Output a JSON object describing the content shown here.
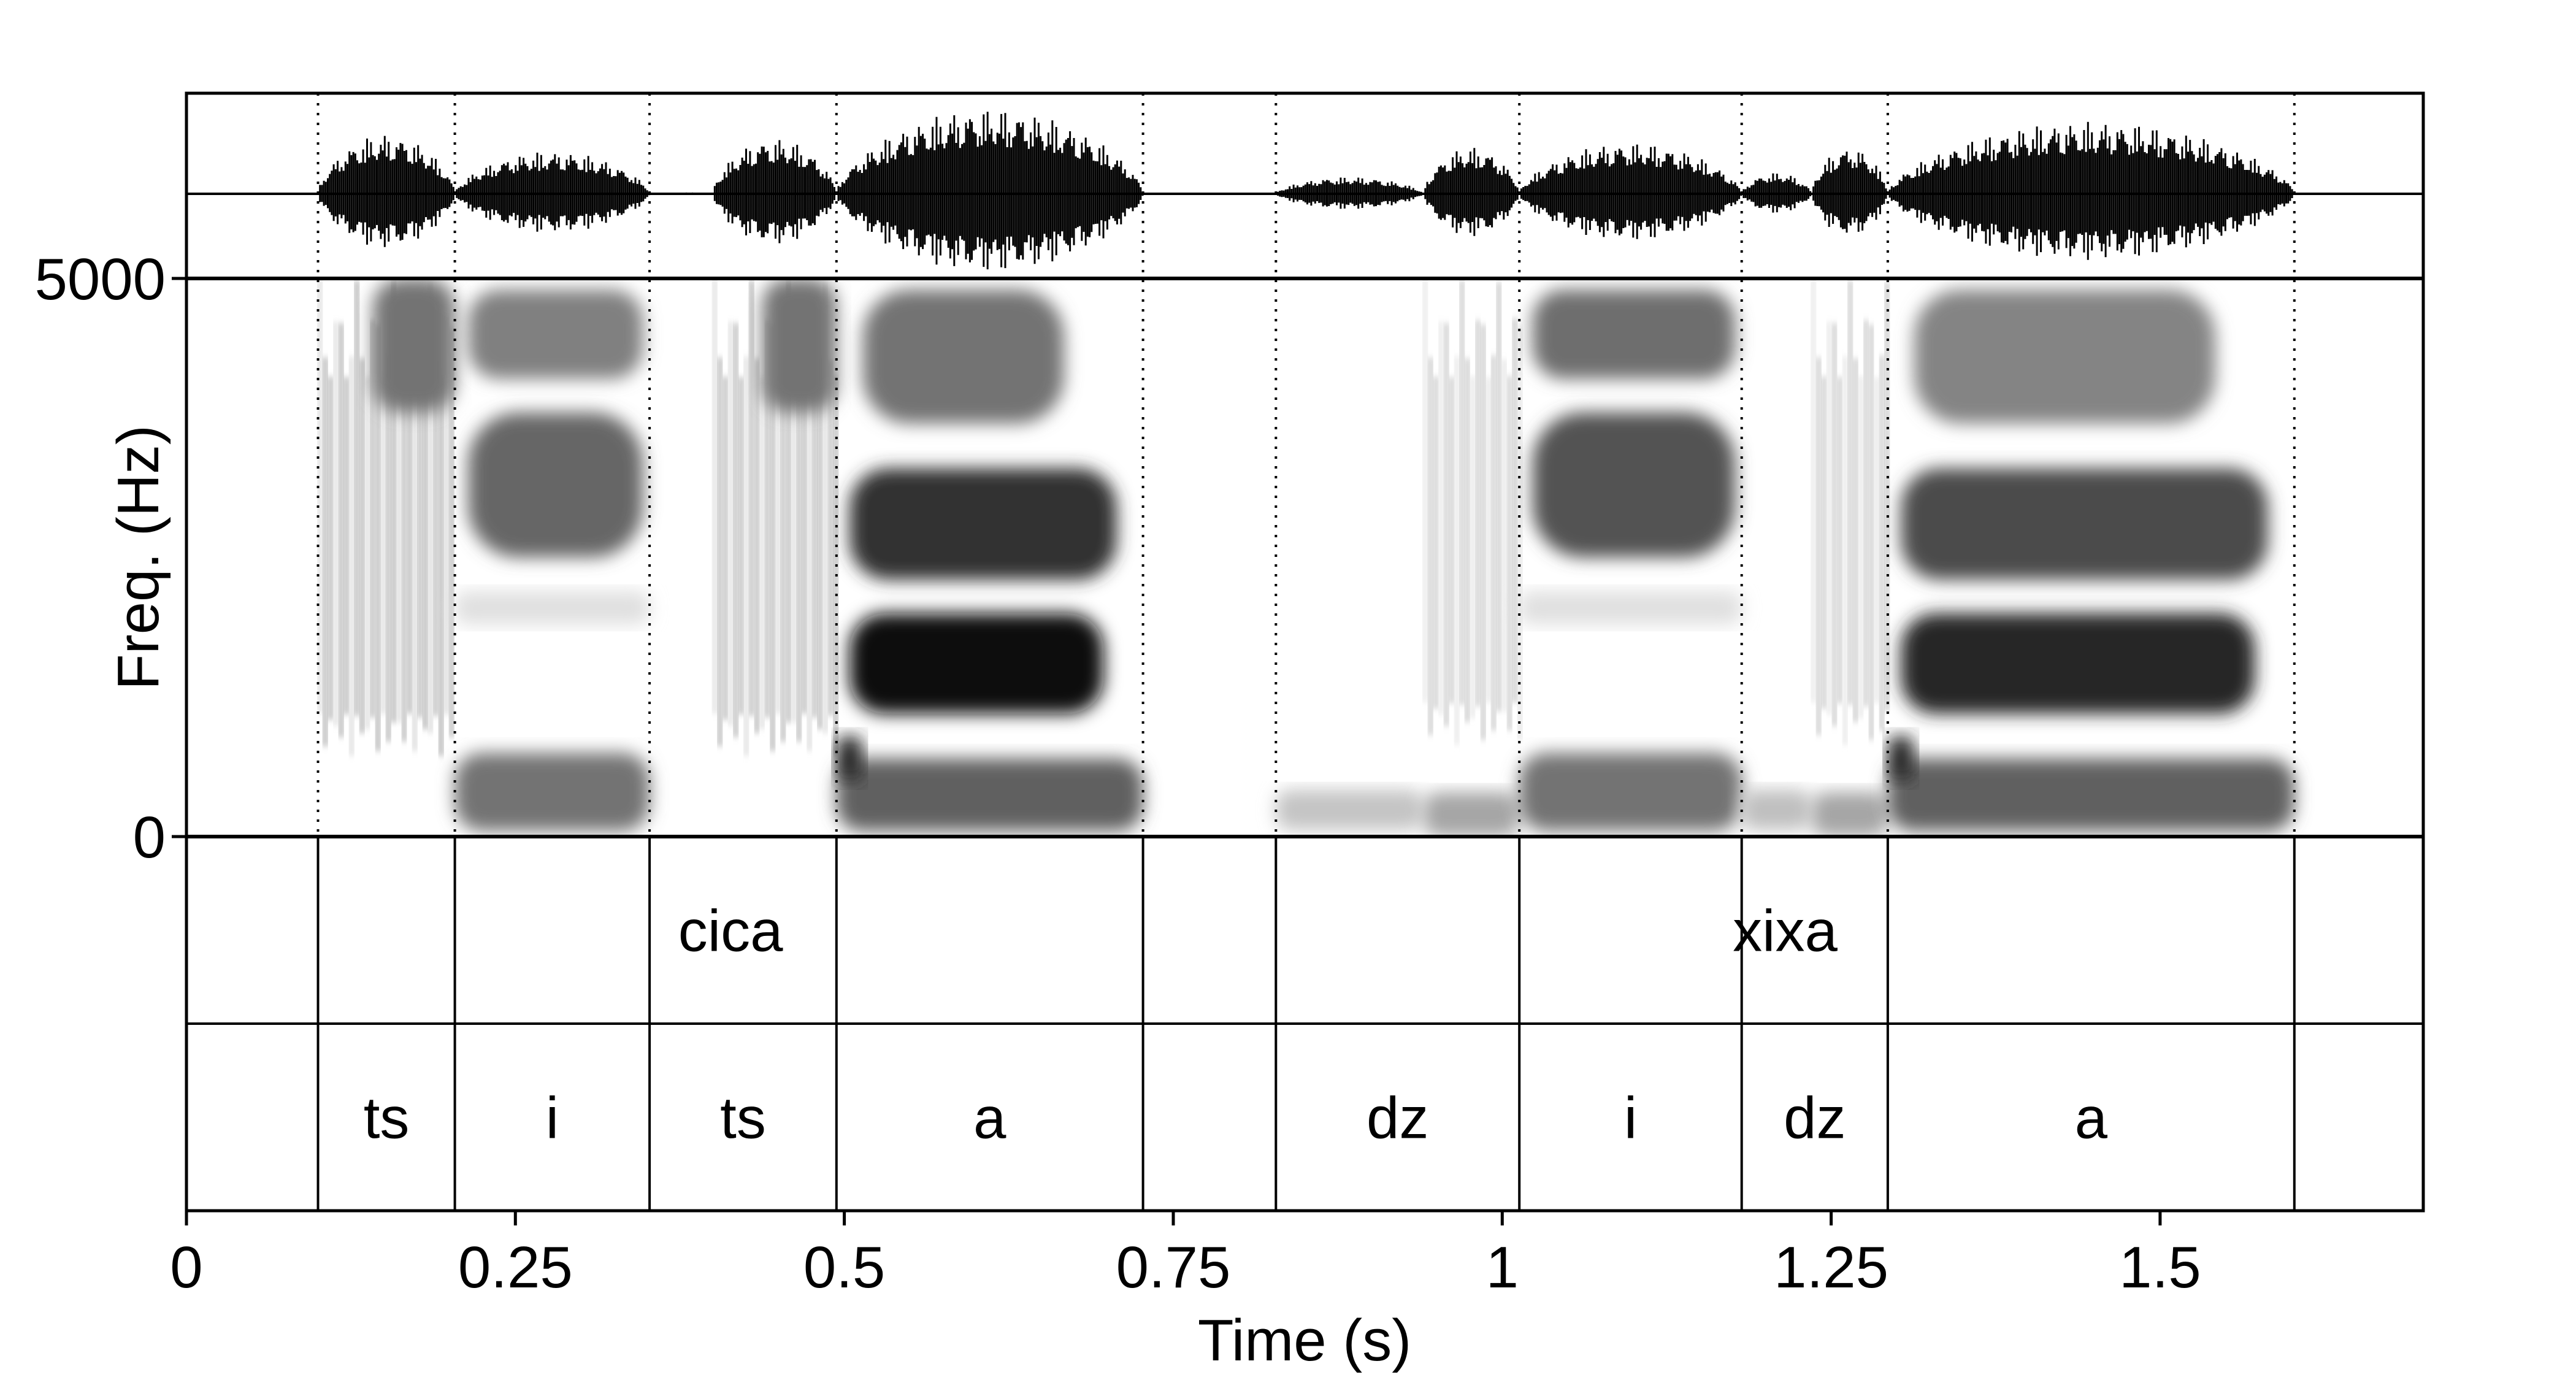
{
  "chart_data": {
    "type": "spectrogram",
    "xlabel": "Time (s)",
    "ylabel": "Freq. (Hz)",
    "xlim": [
      0,
      1.7
    ],
    "x_ticks": [
      {
        "value": 0,
        "label": "0"
      },
      {
        "value": 0.25,
        "label": "0.25"
      },
      {
        "value": 0.5,
        "label": "0.5"
      },
      {
        "value": 0.75,
        "label": "0.75"
      },
      {
        "value": 1,
        "label": "1"
      },
      {
        "value": 1.25,
        "label": "1.25"
      },
      {
        "value": 1.5,
        "label": "1.5"
      }
    ],
    "freq_range": [
      0,
      5000
    ],
    "y_ticks": [
      {
        "value": 5000,
        "label": "5000"
      },
      {
        "value": 0,
        "label": "0"
      }
    ],
    "boundaries": [
      0.1,
      0.204,
      0.352,
      0.494,
      0.727,
      0.828,
      1.013,
      1.182,
      1.293,
      1.602
    ],
    "tiers": [
      {
        "intervals": [
          {
            "label": "cica",
            "start": 0.1,
            "end": 0.727
          },
          {
            "label": "xixa",
            "start": 0.828,
            "end": 1.602
          }
        ]
      },
      {
        "intervals": [
          {
            "label": "ts",
            "start": 0.1,
            "end": 0.204
          },
          {
            "label": "i",
            "start": 0.204,
            "end": 0.352
          },
          {
            "label": "ts",
            "start": 0.352,
            "end": 0.494
          },
          {
            "label": "a",
            "start": 0.494,
            "end": 0.727
          },
          {
            "label": "dz",
            "start": 0.828,
            "end": 1.013
          },
          {
            "label": "i",
            "start": 1.013,
            "end": 1.182
          },
          {
            "label": "dz",
            "start": 1.182,
            "end": 1.293
          },
          {
            "label": "a",
            "start": 1.293,
            "end": 1.602
          }
        ]
      }
    ],
    "segments": [
      {
        "start": 0.1,
        "end": 0.204,
        "type": "fricative",
        "amp": 0.7
      },
      {
        "start": 0.204,
        "end": 0.352,
        "type": "vowel-i",
        "amp": 0.5
      },
      {
        "start": 0.352,
        "end": 0.4,
        "type": "silence",
        "amp": 0.02
      },
      {
        "start": 0.4,
        "end": 0.494,
        "type": "fricative",
        "amp": 0.65
      },
      {
        "start": 0.494,
        "end": 0.727,
        "type": "vowel-a",
        "amp": 1.0
      },
      {
        "start": 0.828,
        "end": 0.94,
        "type": "voicing",
        "amp": 0.2
      },
      {
        "start": 0.94,
        "end": 1.013,
        "type": "voiced-fricative",
        "amp": 0.55
      },
      {
        "start": 1.013,
        "end": 1.182,
        "type": "vowel-i",
        "amp": 0.6
      },
      {
        "start": 1.182,
        "end": 1.235,
        "type": "voicing",
        "amp": 0.25
      },
      {
        "start": 1.235,
        "end": 1.293,
        "type": "voiced-fricative",
        "amp": 0.55
      },
      {
        "start": 1.293,
        "end": 1.602,
        "type": "vowel-a",
        "amp": 0.85
      }
    ]
  }
}
